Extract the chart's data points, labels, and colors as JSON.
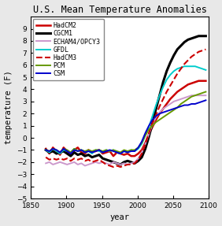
{
  "title": "U.S. Mean Temperature Anomalies",
  "xlabel": "year",
  "ylabel": "temperature (F)",
  "xlim": [
    1850,
    2100
  ],
  "ylim": [
    -5,
    10
  ],
  "yticks": [
    -5,
    -4,
    -3,
    -2,
    -1,
    0,
    1,
    2,
    3,
    4,
    5,
    6,
    7,
    8,
    9
  ],
  "xticks": [
    1850,
    1900,
    1950,
    2000,
    2050,
    2100
  ],
  "series": [
    {
      "name": "HadCM2",
      "color": "#cc0000",
      "lw": 1.8,
      "linestyle": "-",
      "x": [
        1871,
        1876,
        1881,
        1886,
        1891,
        1896,
        1901,
        1906,
        1911,
        1916,
        1921,
        1926,
        1931,
        1936,
        1941,
        1946,
        1951,
        1956,
        1961,
        1966,
        1971,
        1976,
        1981,
        1986,
        1991,
        1996,
        2001,
        2006,
        2011,
        2016,
        2021,
        2026,
        2031,
        2036,
        2041,
        2046,
        2051,
        2056,
        2061,
        2066,
        2071,
        2076,
        2081,
        2086,
        2091,
        2096
      ],
      "y": [
        -0.9,
        -1.3,
        -0.8,
        -1.1,
        -1.4,
        -0.8,
        -1.1,
        -1.4,
        -1.0,
        -0.8,
        -1.2,
        -1.3,
        -1.0,
        -1.2,
        -1.1,
        -1.0,
        -1.3,
        -1.2,
        -1.1,
        -1.5,
        -1.2,
        -1.3,
        -1.4,
        -1.3,
        -1.5,
        -1.5,
        -1.3,
        -1.0,
        -0.4,
        0.3,
        0.9,
        1.5,
        2.0,
        2.4,
        2.8,
        3.2,
        3.5,
        3.8,
        4.0,
        4.2,
        4.4,
        4.5,
        4.6,
        4.7,
        4.7,
        4.7
      ]
    },
    {
      "name": "CGCM1",
      "color": "#000000",
      "lw": 2.2,
      "linestyle": "-",
      "x": [
        1871,
        1876,
        1881,
        1886,
        1891,
        1896,
        1901,
        1906,
        1911,
        1916,
        1921,
        1926,
        1931,
        1936,
        1941,
        1946,
        1951,
        1956,
        1961,
        1966,
        1971,
        1976,
        1981,
        1986,
        1991,
        1996,
        2001,
        2006,
        2011,
        2016,
        2021,
        2026,
        2031,
        2036,
        2041,
        2046,
        2051,
        2056,
        2061,
        2066,
        2071,
        2076,
        2081,
        2086,
        2091,
        2096
      ],
      "y": [
        -1.0,
        -1.2,
        -1.1,
        -1.3,
        -1.2,
        -1.1,
        -1.3,
        -1.5,
        -1.2,
        -1.4,
        -1.3,
        -1.5,
        -1.4,
        -1.6,
        -1.5,
        -1.4,
        -1.7,
        -1.8,
        -1.9,
        -2.0,
        -2.1,
        -2.2,
        -2.0,
        -1.9,
        -2.0,
        -2.1,
        -1.9,
        -1.6,
        -0.9,
        0.1,
        1.2,
        2.4,
        3.5,
        4.6,
        5.5,
        6.2,
        6.8,
        7.3,
        7.6,
        7.9,
        8.1,
        8.2,
        8.3,
        8.4,
        8.4,
        8.4
      ]
    },
    {
      "name": "ECHAM4/OPCY3",
      "color": "#cc99cc",
      "lw": 1.4,
      "linestyle": "-",
      "x": [
        1871,
        1876,
        1881,
        1886,
        1891,
        1896,
        1901,
        1906,
        1911,
        1916,
        1921,
        1926,
        1931,
        1936,
        1941,
        1946,
        1951,
        1956,
        1961,
        1966,
        1971,
        1976,
        1981,
        1986,
        1991,
        1996,
        2001,
        2006,
        2011,
        2016,
        2021,
        2026,
        2031,
        2036,
        2041,
        2046,
        2051,
        2056,
        2061,
        2066,
        2071,
        2076,
        2081,
        2086,
        2091,
        2096
      ],
      "y": [
        -2.1,
        -2.0,
        -2.2,
        -2.1,
        -2.0,
        -2.1,
        -2.2,
        -2.1,
        -2.0,
        -2.2,
        -2.1,
        -2.3,
        -2.2,
        -2.1,
        -2.0,
        -2.1,
        -2.0,
        -2.1,
        -2.2,
        -2.0,
        -2.1,
        -2.2,
        -2.1,
        -2.2,
        -2.1,
        -2.0,
        -1.7,
        -1.2,
        -0.5,
        0.3,
        1.1,
        1.7,
        2.1,
        2.4,
        2.6,
        2.8,
        3.0,
        3.1,
        3.2,
        3.3,
        3.4,
        3.5,
        3.5,
        3.5,
        3.5,
        3.5
      ]
    },
    {
      "name": "GFDL",
      "color": "#00cccc",
      "lw": 1.4,
      "linestyle": "-",
      "x": [
        1871,
        1876,
        1881,
        1886,
        1891,
        1896,
        1901,
        1906,
        1911,
        1916,
        1921,
        1926,
        1931,
        1936,
        1941,
        1946,
        1951,
        1956,
        1961,
        1966,
        1971,
        1976,
        1981,
        1986,
        1991,
        1996,
        2001,
        2006,
        2011,
        2016,
        2021,
        2026,
        2031,
        2036,
        2041,
        2046,
        2051,
        2056,
        2061,
        2066,
        2071,
        2076,
        2081,
        2086,
        2091,
        2096
      ],
      "y": [
        -1.0,
        -1.2,
        -0.9,
        -1.1,
        -1.3,
        -1.0,
        -1.1,
        -1.2,
        -0.9,
        -1.1,
        -1.0,
        -1.2,
        -1.1,
        -1.3,
        -1.0,
        -1.1,
        -1.2,
        -1.0,
        -1.1,
        -1.0,
        -1.2,
        -1.3,
        -1.1,
        -1.2,
        -1.0,
        -1.1,
        -0.9,
        -0.5,
        0.2,
        0.9,
        1.8,
        2.7,
        3.5,
        4.2,
        4.8,
        5.2,
        5.5,
        5.7,
        5.8,
        5.9,
        5.9,
        5.9,
        5.9,
        5.8,
        5.7,
        5.6
      ]
    },
    {
      "name": "HadCM3",
      "color": "#cc0000",
      "lw": 1.5,
      "linestyle": "--",
      "x": [
        1871,
        1876,
        1881,
        1886,
        1891,
        1896,
        1901,
        1906,
        1911,
        1916,
        1921,
        1926,
        1931,
        1936,
        1941,
        1946,
        1951,
        1956,
        1961,
        1966,
        1971,
        1976,
        1981,
        1986,
        1991,
        1996,
        2001,
        2006,
        2011,
        2016,
        2021,
        2026,
        2031,
        2036,
        2041,
        2046,
        2051,
        2056,
        2061,
        2066,
        2071,
        2076,
        2081,
        2086,
        2091,
        2096
      ],
      "y": [
        -1.6,
        -1.8,
        -1.7,
        -1.8,
        -1.7,
        -1.8,
        -1.7,
        -1.9,
        -1.7,
        -1.8,
        -1.7,
        -1.9,
        -1.8,
        -2.0,
        -1.9,
        -1.8,
        -2.0,
        -2.2,
        -2.3,
        -2.4,
        -2.3,
        -2.4,
        -2.3,
        -2.2,
        -2.2,
        -2.1,
        -1.8,
        -1.3,
        -0.5,
        0.4,
        1.2,
        1.9,
        2.6,
        3.2,
        3.8,
        4.3,
        4.8,
        5.3,
        5.7,
        6.1,
        6.4,
        6.7,
        6.9,
        7.1,
        7.2,
        7.3
      ]
    },
    {
      "name": "PCM",
      "color": "#669900",
      "lw": 1.4,
      "linestyle": "-",
      "x": [
        1871,
        1876,
        1881,
        1886,
        1891,
        1896,
        1901,
        1906,
        1911,
        1916,
        1921,
        1926,
        1931,
        1936,
        1941,
        1946,
        1951,
        1956,
        1961,
        1966,
        1971,
        1976,
        1981,
        1986,
        1991,
        1996,
        2001,
        2006,
        2011,
        2016,
        2021,
        2026,
        2031,
        2036,
        2041,
        2046,
        2051,
        2056,
        2061,
        2066,
        2071,
        2076,
        2081,
        2086,
        2091,
        2096
      ],
      "y": [
        -1.0,
        -1.1,
        -0.9,
        -1.0,
        -1.2,
        -0.9,
        -1.0,
        -1.2,
        -0.9,
        -1.1,
        -1.0,
        -1.1,
        -1.0,
        -1.1,
        -1.0,
        -1.0,
        -1.1,
        -1.0,
        -1.1,
        -1.0,
        -1.1,
        -1.2,
        -1.0,
        -1.1,
        -1.0,
        -1.0,
        -0.8,
        -0.4,
        0.2,
        0.7,
        1.0,
        1.3,
        1.5,
        1.7,
        1.9,
        2.1,
        2.3,
        2.5,
        2.8,
        3.0,
        3.2,
        3.4,
        3.5,
        3.6,
        3.7,
        3.8
      ]
    },
    {
      "name": "CSM",
      "color": "#0000cc",
      "lw": 1.4,
      "linestyle": "-",
      "x": [
        1871,
        1876,
        1881,
        1886,
        1891,
        1896,
        1901,
        1906,
        1911,
        1916,
        1921,
        1926,
        1931,
        1936,
        1941,
        1946,
        1951,
        1956,
        1961,
        1966,
        1971,
        1976,
        1981,
        1986,
        1991,
        1996,
        2001,
        2006,
        2011,
        2016,
        2021,
        2026,
        2031,
        2036,
        2041,
        2046,
        2051,
        2056,
        2061,
        2066,
        2071,
        2076,
        2081,
        2086,
        2091,
        2096
      ],
      "y": [
        -1.0,
        -1.1,
        -0.9,
        -1.0,
        -1.2,
        -0.9,
        -1.1,
        -1.3,
        -1.0,
        -1.1,
        -1.0,
        -1.2,
        -1.1,
        -1.2,
        -1.1,
        -1.0,
        -1.2,
        -1.1,
        -1.0,
        -1.1,
        -1.2,
        -1.3,
        -1.1,
        -1.2,
        -1.1,
        -1.1,
        -0.8,
        -0.3,
        0.4,
        1.0,
        1.5,
        1.8,
        2.0,
        2.1,
        2.2,
        2.3,
        2.4,
        2.5,
        2.6,
        2.7,
        2.7,
        2.8,
        2.8,
        2.9,
        3.0,
        3.1
      ]
    }
  ],
  "bg_color": "#e8e8e8",
  "plot_bg": "#ffffff",
  "title_fontsize": 8.5,
  "label_fontsize": 7.5,
  "tick_fontsize": 6.5,
  "legend_fontsize": 6.0
}
